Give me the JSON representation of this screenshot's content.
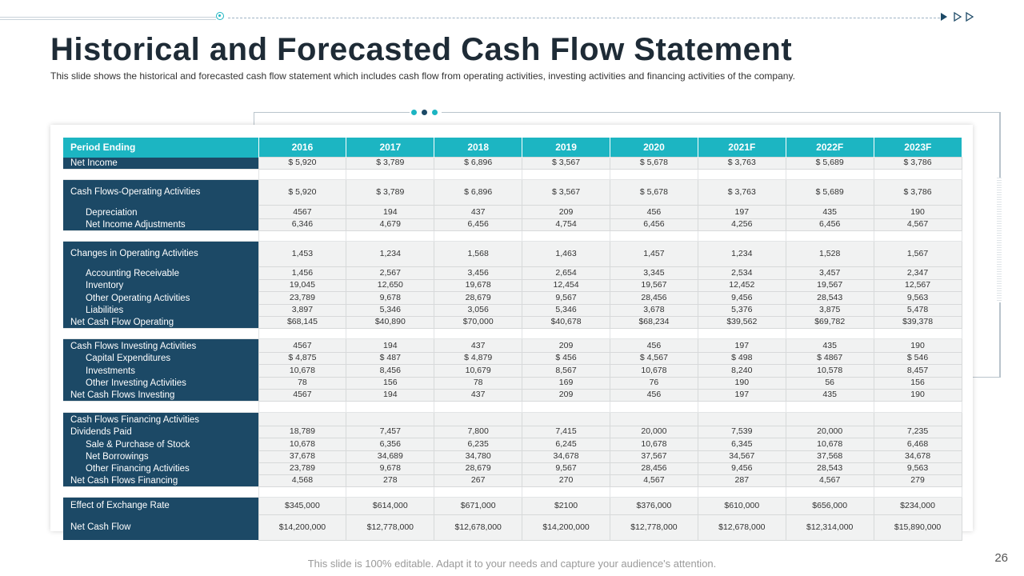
{
  "header": {
    "title": "Historical and Forecasted Cash Flow Statement",
    "subtitle": "This slide shows the historical and forecasted cash flow statement which includes cash flow from operating activities, investing activities and financing activities of the company."
  },
  "colors": {
    "teal": "#1cb5c2",
    "navy": "#1c4966",
    "cell": "#f1f2f2"
  },
  "table": {
    "header": [
      "Period Ending",
      "2016",
      "2017",
      "2018",
      "2019",
      "2020",
      "2021F",
      "2022F",
      "2023F"
    ],
    "rows": [
      {
        "label": "Net Income",
        "values": [
          "$ 5,920",
          "$ 3,789",
          "$ 6,896",
          "$ 3,567",
          "$ 5,678",
          "$ 3,763",
          "$ 5,689",
          "$ 3,786"
        ]
      },
      {
        "label": "Cash Flows-Operating Activities",
        "values": [
          "$ 5,920",
          "$ 3,789",
          "$ 6,896",
          "$ 3,567",
          "$ 5,678",
          "$ 3,763",
          "$ 5,689",
          "$ 3,786"
        ]
      },
      {
        "label": "Depreciation",
        "values": [
          "4567",
          "194",
          "437",
          "209",
          "456",
          "197",
          "435",
          "190"
        ]
      },
      {
        "label": "Net Income Adjustments",
        "values": [
          "6,346",
          "4,679",
          "6,456",
          "4,754",
          "6,456",
          "4,256",
          "6,456",
          "4,567"
        ]
      },
      {
        "label": "Changes in Operating Activities",
        "values": [
          "1,453",
          "1,234",
          "1,568",
          "1,463",
          "1,457",
          "1,234",
          "1,528",
          "1,567"
        ]
      },
      {
        "label": "Accounting Receivable",
        "values": [
          "1,456",
          "2,567",
          "3,456",
          "2,654",
          "3,345",
          "2,534",
          "3,457",
          "2,347"
        ]
      },
      {
        "label": "Inventory",
        "values": [
          "19,045",
          "12,650",
          "19,678",
          "12,454",
          "19,567",
          "12,452",
          "19,567",
          "12,567"
        ]
      },
      {
        "label": "Other Operating Activities",
        "values": [
          "23,789",
          "9,678",
          "28,679",
          "9,567",
          "28,456",
          "9,456",
          "28,543",
          "9,563"
        ]
      },
      {
        "label": "Liabilities",
        "values": [
          "3,897",
          "5,346",
          "3,056",
          "5,346",
          "3,678",
          "5,376",
          "3,875",
          "5,478"
        ]
      },
      {
        "label": "Net Cash Flow Operating",
        "values": [
          "$68,145",
          "$40,890",
          "$70,000",
          "$40,678",
          "$68,234",
          "$39,562",
          "$69,782",
          "$39,378"
        ]
      },
      {
        "label": "Cash Flows Investing Activities",
        "values": [
          "4567",
          "194",
          "437",
          "209",
          "456",
          "197",
          "435",
          "190"
        ]
      },
      {
        "label": "Capital Expenditures",
        "values": [
          "$ 4,875",
          "$ 487",
          "$ 4,879",
          "$ 456",
          "$ 4,567",
          "$ 498",
          "$ 4867",
          "$ 546"
        ]
      },
      {
        "label": "Investments",
        "values": [
          "10,678",
          "8,456",
          "10,679",
          "8,567",
          "10,678",
          "8,240",
          "10,578",
          "8,457"
        ]
      },
      {
        "label": "Other Investing Activities",
        "values": [
          "78",
          "156",
          "78",
          "169",
          "76",
          "190",
          "56",
          "156"
        ]
      },
      {
        "label": "Net Cash Flows Investing",
        "values": [
          "4567",
          "194",
          "437",
          "209",
          "456",
          "197",
          "435",
          "190"
        ]
      },
      {
        "label": "Cash Flows Financing Activities",
        "values": [
          "",
          "",
          "",
          "",
          "",
          "",
          "",
          ""
        ]
      },
      {
        "label": "Dividends Paid",
        "values": [
          "18,789",
          "7,457",
          "7,800",
          "7,415",
          "20,000",
          "7,539",
          "20,000",
          "7,235"
        ]
      },
      {
        "label": "Sale & Purchase of Stock",
        "values": [
          "10,678",
          "6,356",
          "6,235",
          "6,245",
          "10,678",
          "6,345",
          "10,678",
          "6,468"
        ]
      },
      {
        "label": "Net Borrowings",
        "values": [
          "37,678",
          "34,689",
          "34,780",
          "34,678",
          "37,567",
          "34,567",
          "37,568",
          "34,678"
        ]
      },
      {
        "label": "Other Financing Activities",
        "values": [
          "23,789",
          "9,678",
          "28,679",
          "9,567",
          "28,456",
          "9,456",
          "28,543",
          "9,563"
        ]
      },
      {
        "label": "Net Cash Flows Financing",
        "values": [
          "4,568",
          "278",
          "267",
          "270",
          "4,567",
          "287",
          "4,567",
          "279"
        ]
      },
      {
        "label": "Effect of Exchange Rate",
        "values": [
          "$345,000",
          "$614,000",
          "$671,000",
          "$2100",
          "$376,000",
          "$610,000",
          "$656,000",
          "$234,000"
        ]
      },
      {
        "label": "Net Cash Flow",
        "values": [
          "$14,200,000",
          "$12,778,000",
          "$12,678,000",
          "$14,200,000",
          "$12,778,000",
          "$12,678,000",
          "$12,314,000",
          "$15,890,000"
        ]
      }
    ]
  },
  "footer": {
    "note": "This slide is 100% editable. Adapt it to your needs and capture your audience's attention.",
    "page": "26"
  }
}
